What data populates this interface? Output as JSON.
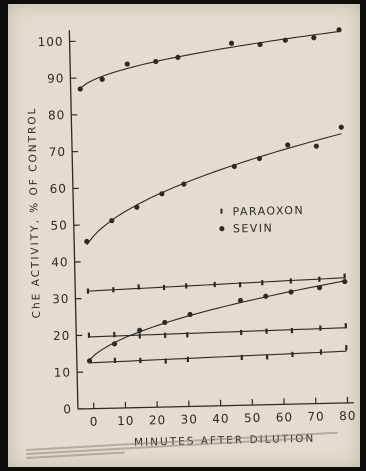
{
  "chart_data": {
    "type": "scatter",
    "title": "",
    "xlabel": "MINUTES AFTER DILUTION",
    "ylabel": "ChE ACTIVITY, % OF CONTROL",
    "xlim": [
      -5,
      82
    ],
    "ylim": [
      0,
      102
    ],
    "x_ticks": [
      0,
      10,
      20,
      30,
      40,
      50,
      60,
      70,
      80
    ],
    "y_ticks": [
      0,
      10,
      20,
      30,
      40,
      50,
      60,
      70,
      80,
      90,
      100
    ],
    "grid": false,
    "legend_position": "middle-right",
    "legend": [
      {
        "label": "PARAOXON",
        "marker": "tick"
      },
      {
        "label": "SEVIN",
        "marker": "dot"
      }
    ],
    "series": [
      {
        "legend_index": 1,
        "marker": "dot",
        "curve": "concave",
        "x": [
          -2,
          5,
          13,
          22,
          29,
          46,
          55,
          63,
          72,
          80
        ],
        "y": [
          87,
          89.5,
          93.5,
          94,
          95,
          98.5,
          98,
          99,
          99.5,
          101.5
        ]
      },
      {
        "legend_index": 1,
        "marker": "dot",
        "curve": "concave",
        "x": [
          -1,
          7,
          15,
          23,
          30,
          46,
          54,
          63,
          72,
          80
        ],
        "y": [
          45.5,
          51,
          54.5,
          58,
          60.5,
          65,
          67,
          70.5,
          70,
          75
        ]
      },
      {
        "legend_index": 0,
        "marker": "tick",
        "curve": "linear",
        "x": [
          -1,
          7,
          15,
          23,
          30,
          39,
          47,
          54,
          63,
          72,
          80
        ],
        "y": [
          32,
          32.2,
          32.8,
          32.5,
          32.8,
          33,
          32.8,
          33.2,
          33.5,
          33.8,
          34.5
        ]
      },
      {
        "legend_index": 1,
        "marker": "dot",
        "curve": "concave",
        "x": [
          -1,
          7,
          15,
          23,
          31,
          47,
          55,
          63,
          72,
          80
        ],
        "y": [
          13,
          17.5,
          21,
          23,
          25,
          28.5,
          29.5,
          30.5,
          31.5,
          33
        ]
      },
      {
        "legend_index": 0,
        "marker": "tick",
        "curve": "linear",
        "x": [
          -1,
          7,
          15,
          23,
          30,
          47,
          55,
          63,
          72,
          80
        ],
        "y": [
          20,
          20,
          19.5,
          19.5,
          19.5,
          19.8,
          20,
          20,
          20.5,
          21
        ]
      },
      {
        "legend_index": 0,
        "marker": "tick",
        "curve": "linear",
        "x": [
          -1,
          7,
          15,
          23,
          30,
          47,
          55,
          63,
          72,
          80
        ],
        "y": [
          13,
          13,
          12.8,
          12.5,
          12.8,
          13,
          13,
          13.5,
          14,
          15
        ]
      }
    ],
    "colors": {
      "ink": "#2c2a26",
      "paper": "#e4ddcf",
      "background": "#0e0d0b"
    }
  }
}
